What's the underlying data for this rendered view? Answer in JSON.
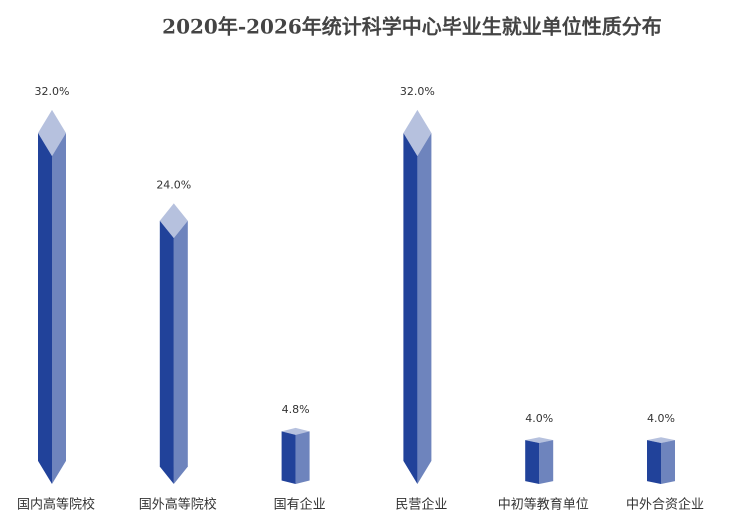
{
  "chart_data": {
    "type": "bar",
    "title": "2020年-2026年统计科学中心毕业生就业单位性质分布",
    "categories": [
      "国内高等院校",
      "国外高等院校",
      "国有企业",
      "民营企业",
      "中初等教育单位",
      "中外合资企业"
    ],
    "values": [
      32,
      24,
      4.8,
      32,
      4,
      4
    ],
    "value_labels": [
      "32.0%",
      "24.0%",
      "4.8%",
      "32.0%",
      "4.0%",
      "4.0%"
    ],
    "color": "#21429a"
  }
}
